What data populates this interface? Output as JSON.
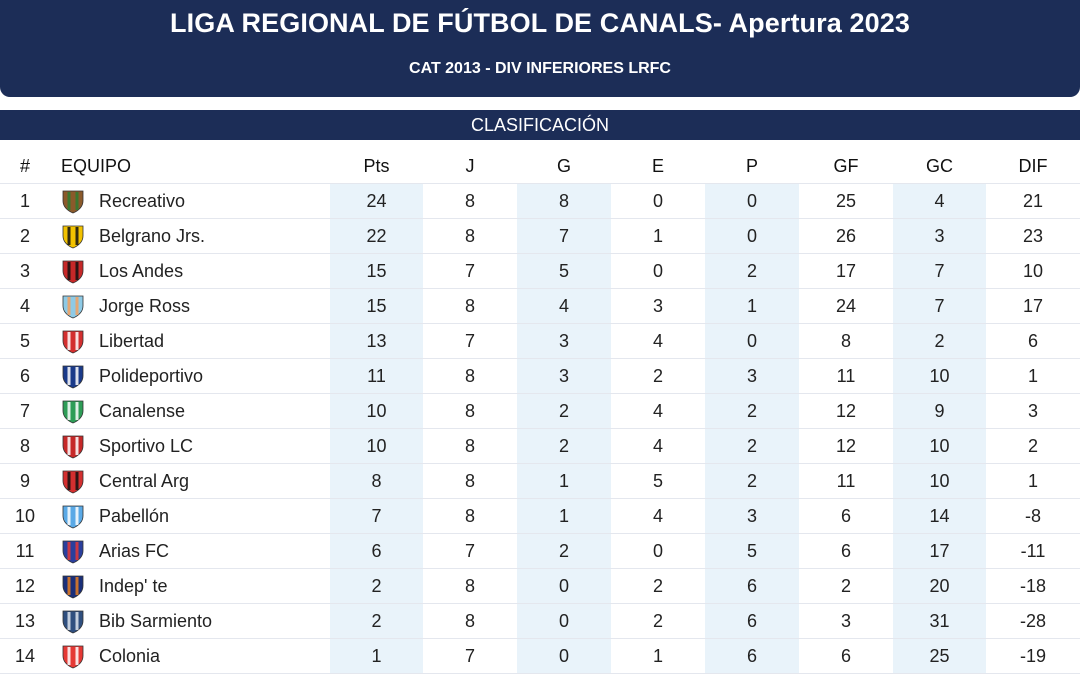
{
  "header": {
    "title": "LIGA REGIONAL DE FÚTBOL DE CANALS- Apertura 2023",
    "subtitle": "CAT 2013 - DIV INFERIORES LRFC"
  },
  "section_title": "CLASIFICACIÓN",
  "columns": [
    "#",
    "EQUIPO",
    "Pts",
    "J",
    "G",
    "E",
    "P",
    "GF",
    "GC",
    "DIF"
  ],
  "rows": [
    {
      "pos": "1",
      "team": "Recreativo",
      "pts": "24",
      "j": "8",
      "g": "8",
      "e": "0",
      "p": "0",
      "gf": "25",
      "gc": "4",
      "dif": "21",
      "crest": "recreativo-crest-icon",
      "c1": "#8b5a2b",
      "c2": "#2e7d32"
    },
    {
      "pos": "2",
      "team": "Belgrano Jrs.",
      "pts": "22",
      "j": "8",
      "g": "7",
      "e": "1",
      "p": "0",
      "gf": "26",
      "gc": "3",
      "dif": "23",
      "crest": "belgrano-crest-icon",
      "c1": "#f2c200",
      "c2": "#111111"
    },
    {
      "pos": "3",
      "team": "Los Andes",
      "pts": "15",
      "j": "7",
      "g": "5",
      "e": "0",
      "p": "2",
      "gf": "17",
      "gc": "7",
      "dif": "10",
      "crest": "los-andes-crest-icon",
      "c1": "#c62828",
      "c2": "#111111"
    },
    {
      "pos": "4",
      "team": "Jorge Ross",
      "pts": "15",
      "j": "8",
      "g": "4",
      "e": "3",
      "p": "1",
      "gf": "24",
      "gc": "7",
      "dif": "17",
      "crest": "jorge-ross-crest-icon",
      "c1": "#8ecae6",
      "c2": "#f4a261"
    },
    {
      "pos": "5",
      "team": "Libertad",
      "pts": "13",
      "j": "7",
      "g": "3",
      "e": "4",
      "p": "0",
      "gf": "8",
      "gc": "2",
      "dif": "6",
      "crest": "libertad-crest-icon",
      "c1": "#d32f2f",
      "c2": "#ffffff"
    },
    {
      "pos": "6",
      "team": "Polideportivo",
      "pts": "11",
      "j": "8",
      "g": "3",
      "e": "2",
      "p": "3",
      "gf": "11",
      "gc": "10",
      "dif": "1",
      "crest": "polideportivo-crest-icon",
      "c1": "#1a3a8a",
      "c2": "#ffffff"
    },
    {
      "pos": "7",
      "team": "Canalense",
      "pts": "10",
      "j": "8",
      "g": "2",
      "e": "4",
      "p": "2",
      "gf": "12",
      "gc": "9",
      "dif": "3",
      "crest": "canalense-crest-icon",
      "c1": "#2e9d57",
      "c2": "#ffffff"
    },
    {
      "pos": "8",
      "team": "Sportivo LC",
      "pts": "10",
      "j": "8",
      "g": "2",
      "e": "4",
      "p": "2",
      "gf": "12",
      "gc": "10",
      "dif": "2",
      "crest": "sportivo-lc-crest-icon",
      "c1": "#c62828",
      "c2": "#ffffff"
    },
    {
      "pos": "9",
      "team": "Central Arg",
      "pts": "8",
      "j": "8",
      "g": "1",
      "e": "5",
      "p": "2",
      "gf": "11",
      "gc": "10",
      "dif": "1",
      "crest": "central-arg-crest-icon",
      "c1": "#d32f2f",
      "c2": "#111111"
    },
    {
      "pos": "10",
      "team": "Pabellón",
      "pts": "7",
      "j": "8",
      "g": "1",
      "e": "4",
      "p": "3",
      "gf": "6",
      "gc": "14",
      "dif": "-8",
      "crest": "pabellon-crest-icon",
      "c1": "#5aa9e6",
      "c2": "#ffffff"
    },
    {
      "pos": "11",
      "team": "Arias FC",
      "pts": "6",
      "j": "7",
      "g": "2",
      "e": "0",
      "p": "5",
      "gf": "6",
      "gc": "17",
      "dif": "-11",
      "crest": "arias-fc-crest-icon",
      "c1": "#2a3f9d",
      "c2": "#e53935"
    },
    {
      "pos": "12",
      "team": "Indep' te",
      "pts": "2",
      "j": "8",
      "g": "0",
      "e": "2",
      "p": "6",
      "gf": "2",
      "gc": "20",
      "dif": "-18",
      "crest": "independiente-crest-icon",
      "c1": "#1a2f7a",
      "c2": "#e67e22"
    },
    {
      "pos": "13",
      "team": "Bib Sarmiento",
      "pts": "2",
      "j": "8",
      "g": "0",
      "e": "2",
      "p": "6",
      "gf": "3",
      "gc": "31",
      "dif": "-28",
      "crest": "bib-sarmiento-crest-icon",
      "c1": "#2f4f7f",
      "c2": "#dfe6ef"
    },
    {
      "pos": "14",
      "team": "Colonia",
      "pts": "1",
      "j": "7",
      "g": "0",
      "e": "1",
      "p": "6",
      "gf": "6",
      "gc": "25",
      "dif": "-19",
      "crest": "colonia-crest-icon",
      "c1": "#e53935",
      "c2": "#ffffff"
    }
  ]
}
